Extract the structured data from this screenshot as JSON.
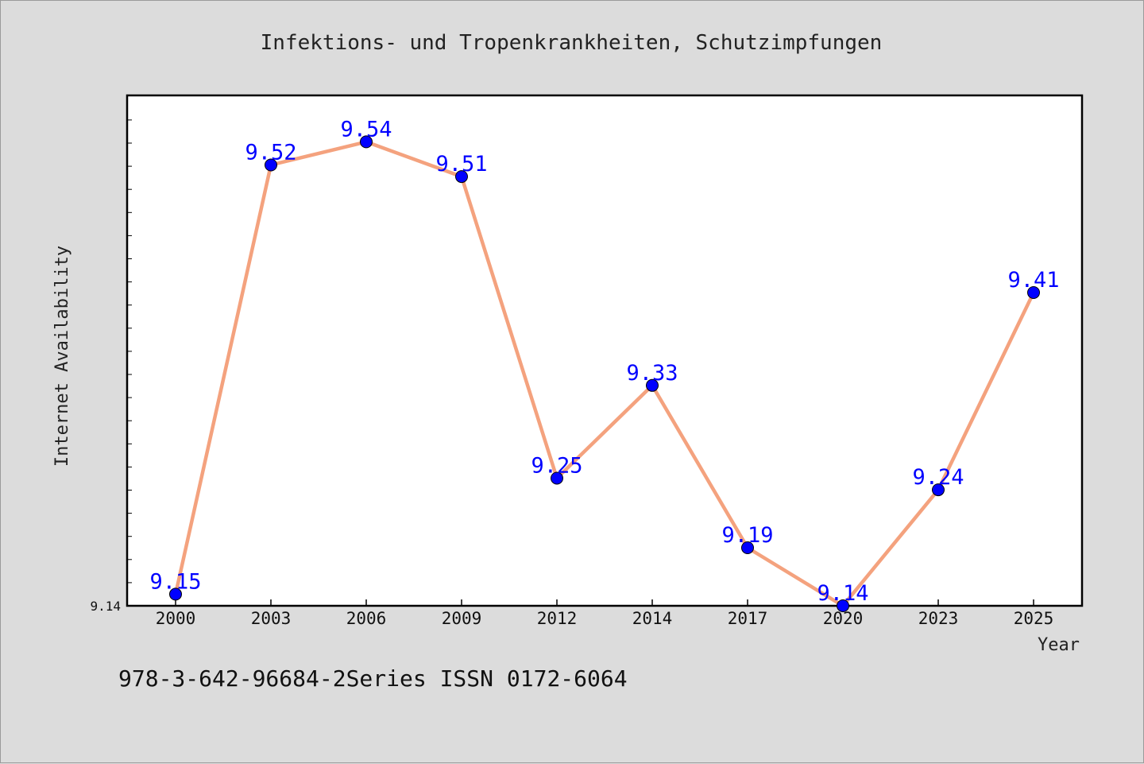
{
  "chart_data": {
    "type": "line",
    "title": "Infektions- und Tropenkrankheiten, Schutzimpfungen",
    "xlabel": "Year",
    "ylabel": "Internet Availability",
    "categories": [
      "2000",
      "2003",
      "2006",
      "2009",
      "2012",
      "2014",
      "2017",
      "2020",
      "2023",
      "2025"
    ],
    "series": [
      {
        "values": [
          9.15,
          9.52,
          9.54,
          9.51,
          9.25,
          9.33,
          9.19,
          9.14,
          9.24,
          9.41
        ],
        "labels": [
          "9.15",
          "9.52",
          "9.54",
          "9.51",
          "9.25",
          "9.33",
          "9.19",
          "9.14",
          "9.24",
          "9.41"
        ],
        "line_color": "#f4a27e",
        "marker_color": "#0000ff"
      }
    ],
    "yticks": [
      {
        "value": 9.14,
        "label": "9.14"
      }
    ],
    "ylim": [
      9.14,
      9.58
    ],
    "grid": false,
    "legend": "none"
  },
  "footer": {
    "text": "978-3-642-96684-2Series ISSN 0172-6064"
  }
}
